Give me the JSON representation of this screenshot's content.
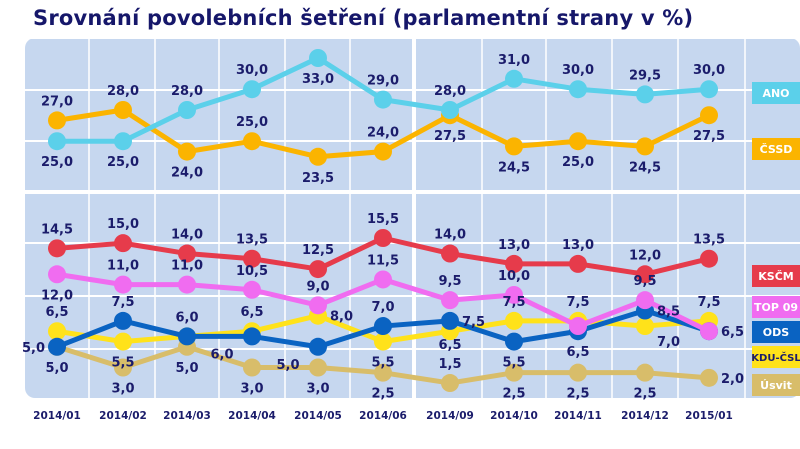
{
  "chart_data": {
    "type": "line",
    "title": "Srovnání povolebních šetření (parlamentní strany v %)",
    "categories": [
      "2014/01",
      "2014/02",
      "2014/03",
      "2014/04",
      "2014/05",
      "2014/06",
      "2014/09",
      "2014/10",
      "2014/11",
      "2014/12",
      "2015/01"
    ],
    "grid": true,
    "legend_placement": "right",
    "panels": [
      {
        "ylim": [
          22,
          35
        ],
        "series": [
          "ANO",
          "ČSSD"
        ]
      },
      {
        "ylim": [
          0,
          17
        ],
        "series": [
          "KSČM",
          "TOP 09",
          "ODS",
          "KDU-ČSL",
          "Úsvit"
        ]
      }
    ],
    "series": [
      {
        "name": "ANO",
        "color": "#5bd0ea",
        "values": [
          25.0,
          25.0,
          28.0,
          30.0,
          33.0,
          29.0,
          28.0,
          31.0,
          30.0,
          29.5,
          30.0
        ],
        "labels": [
          "25,0",
          "25,0",
          "28,0",
          "30,0",
          "33,0",
          "29,0",
          "28,0",
          "31,0",
          "30,0",
          "29,5",
          "30,0"
        ]
      },
      {
        "name": "ČSSD",
        "color": "#fbb400",
        "values": [
          27.0,
          28.0,
          24.0,
          25.0,
          23.5,
          24.0,
          27.5,
          24.5,
          25.0,
          24.5,
          27.5
        ],
        "labels": [
          "27,0",
          "28,0",
          "24,0",
          "25,0",
          "23,5",
          "24,0",
          "27,5",
          "24,5",
          "25,0",
          "24,5",
          "27,5"
        ]
      },
      {
        "name": "KSČM",
        "color": "#e63b4b",
        "values": [
          14.5,
          15.0,
          14.0,
          13.5,
          12.5,
          15.5,
          14.0,
          13.0,
          13.0,
          12.0,
          13.5
        ],
        "labels": [
          "14,5",
          "15,0",
          "14,0",
          "13,5",
          "12,5",
          "15,5",
          "14,0",
          "13,0",
          "13,0",
          "12,0",
          "13,5"
        ]
      },
      {
        "name": "TOP 09",
        "color": "#f06cf0",
        "values": [
          12.0,
          11.0,
          11.0,
          10.5,
          9.0,
          11.5,
          9.5,
          10.0,
          7.0,
          9.5,
          6.5
        ],
        "labels": [
          "12,0",
          "11,0",
          "11,0",
          "10,5",
          "9,0",
          "11,5",
          "9,5",
          "10,0",
          "",
          "9,5",
          ""
        ]
      },
      {
        "name": "ODS",
        "color": "#0a63c2",
        "values": [
          5.0,
          7.5,
          6.0,
          6.0,
          5.0,
          7.0,
          7.5,
          5.5,
          6.5,
          8.5,
          6.5
        ],
        "labels": [
          "5,0",
          "7,5",
          "6,0",
          "6,0",
          "5,0",
          "7,0",
          "7,5",
          "5,5",
          "6,5",
          "8,5",
          "6,5"
        ]
      },
      {
        "name": "KDU-ČSL",
        "color": "#ffe21a",
        "values": [
          6.5,
          5.5,
          6.0,
          6.5,
          8.0,
          5.5,
          6.5,
          7.5,
          7.5,
          7.0,
          7.5
        ],
        "labels": [
          "6,5",
          "5,5",
          "",
          "6,5",
          "8,0",
          "5,5",
          "6,5",
          "7,5",
          "7,5",
          "7,0",
          "7,5"
        ]
      },
      {
        "name": "Úsvit",
        "color": "#d8bd6a",
        "values": [
          5.0,
          3.0,
          5.0,
          3.0,
          3.0,
          2.5,
          1.5,
          2.5,
          2.5,
          2.5,
          2.0
        ],
        "labels": [
          "5,0",
          "3,0",
          "5,0",
          "3,0",
          "3,0",
          "2,5",
          "1,5",
          "2,5",
          "2,5",
          "2,5",
          "2,0"
        ]
      }
    ],
    "label_color": "#1b1c6b",
    "background_color": "#c6d7ef"
  }
}
